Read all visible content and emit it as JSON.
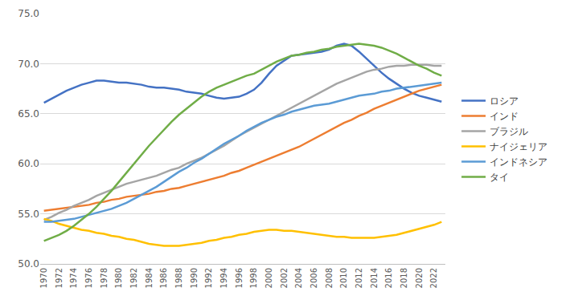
{
  "chart_data": {
    "type": "line",
    "x": [
      1970,
      1971,
      1972,
      1973,
      1974,
      1975,
      1976,
      1977,
      1978,
      1979,
      1980,
      1981,
      1982,
      1983,
      1984,
      1985,
      1986,
      1987,
      1988,
      1989,
      1990,
      1991,
      1992,
      1993,
      1994,
      1995,
      1996,
      1997,
      1998,
      1999,
      2000,
      2001,
      2002,
      2003,
      2004,
      2005,
      2006,
      2007,
      2008,
      2009,
      2010,
      2011,
      2012,
      2013,
      2014,
      2015,
      2016,
      2017,
      2018,
      2019,
      2020,
      2021,
      2022,
      2023
    ],
    "series": [
      {
        "name": "ロシア",
        "color": "#4472c4",
        "values": [
          66.1,
          66.5,
          66.9,
          67.3,
          67.6,
          67.9,
          68.1,
          68.3,
          68.3,
          68.2,
          68.1,
          68.1,
          68.0,
          67.9,
          67.7,
          67.6,
          67.6,
          67.5,
          67.4,
          67.2,
          67.1,
          67.0,
          66.8,
          66.6,
          66.5,
          66.6,
          66.7,
          67.0,
          67.4,
          68.1,
          69.0,
          69.8,
          70.3,
          70.8,
          70.9,
          71.0,
          71.1,
          71.2,
          71.4,
          71.8,
          72.0,
          71.8,
          71.2,
          70.5,
          69.8,
          69.1,
          68.5,
          68.0,
          67.5,
          67.1,
          66.8,
          66.6,
          66.4,
          66.2
        ]
      },
      {
        "name": "インド",
        "color": "#ed7d31",
        "values": [
          55.3,
          55.4,
          55.5,
          55.6,
          55.7,
          55.8,
          55.9,
          56.1,
          56.2,
          56.4,
          56.5,
          56.7,
          56.8,
          56.9,
          57.0,
          57.2,
          57.3,
          57.5,
          57.6,
          57.8,
          58.0,
          58.2,
          58.4,
          58.6,
          58.8,
          59.1,
          59.3,
          59.6,
          59.9,
          60.2,
          60.5,
          60.8,
          61.1,
          61.4,
          61.7,
          62.1,
          62.5,
          62.9,
          63.3,
          63.7,
          64.1,
          64.4,
          64.8,
          65.1,
          65.5,
          65.8,
          66.1,
          66.4,
          66.7,
          67.0,
          67.3,
          67.5,
          67.7,
          67.9
        ]
      },
      {
        "name": "ブラジル",
        "color": "#a5a5a5",
        "values": [
          54.4,
          54.7,
          55.1,
          55.4,
          55.8,
          56.1,
          56.4,
          56.8,
          57.1,
          57.4,
          57.7,
          58.0,
          58.2,
          58.4,
          58.6,
          58.8,
          59.1,
          59.4,
          59.6,
          60.0,
          60.3,
          60.6,
          61.0,
          61.4,
          61.8,
          62.3,
          62.8,
          63.2,
          63.6,
          64.0,
          64.4,
          64.8,
          65.2,
          65.6,
          66.0,
          66.4,
          66.8,
          67.2,
          67.6,
          68.0,
          68.3,
          68.6,
          68.9,
          69.2,
          69.4,
          69.5,
          69.7,
          69.8,
          69.8,
          69.9,
          69.9,
          69.9,
          69.8,
          69.8
        ]
      },
      {
        "name": "ナイジェリア",
        "color": "#ffc000",
        "values": [
          54.5,
          54.3,
          54.0,
          53.8,
          53.6,
          53.4,
          53.3,
          53.1,
          53.0,
          52.8,
          52.7,
          52.5,
          52.4,
          52.2,
          52.0,
          51.9,
          51.8,
          51.8,
          51.8,
          51.9,
          52.0,
          52.1,
          52.3,
          52.4,
          52.6,
          52.7,
          52.9,
          53.0,
          53.2,
          53.3,
          53.4,
          53.4,
          53.3,
          53.3,
          53.2,
          53.1,
          53.0,
          52.9,
          52.8,
          52.7,
          52.7,
          52.6,
          52.6,
          52.6,
          52.6,
          52.7,
          52.8,
          52.9,
          53.1,
          53.3,
          53.5,
          53.7,
          53.9,
          54.2
        ]
      },
      {
        "name": "インドネシア",
        "color": "#5b9bd5",
        "values": [
          54.2,
          54.2,
          54.3,
          54.4,
          54.5,
          54.7,
          54.9,
          55.1,
          55.3,
          55.5,
          55.8,
          56.1,
          56.5,
          56.9,
          57.3,
          57.7,
          58.2,
          58.7,
          59.2,
          59.6,
          60.1,
          60.5,
          61.0,
          61.5,
          62.0,
          62.4,
          62.8,
          63.3,
          63.7,
          64.1,
          64.4,
          64.7,
          64.9,
          65.2,
          65.4,
          65.6,
          65.8,
          65.9,
          66.0,
          66.2,
          66.4,
          66.6,
          66.8,
          66.9,
          67.0,
          67.2,
          67.3,
          67.5,
          67.6,
          67.7,
          67.8,
          67.9,
          68.0,
          68.1
        ]
      },
      {
        "name": "タイ",
        "color": "#70ad47",
        "values": [
          52.3,
          52.6,
          52.9,
          53.3,
          53.8,
          54.4,
          55.0,
          55.7,
          56.5,
          57.3,
          58.2,
          59.1,
          60.0,
          60.9,
          61.8,
          62.6,
          63.4,
          64.2,
          64.9,
          65.5,
          66.1,
          66.7,
          67.2,
          67.6,
          67.9,
          68.2,
          68.5,
          68.8,
          69.0,
          69.4,
          69.8,
          70.2,
          70.5,
          70.8,
          70.9,
          71.1,
          71.2,
          71.4,
          71.5,
          71.7,
          71.8,
          71.9,
          72.0,
          71.9,
          71.8,
          71.6,
          71.3,
          71.0,
          70.6,
          70.2,
          69.8,
          69.5,
          69.1,
          68.8
        ]
      }
    ],
    "xlim": [
      1969.5,
      2023.5
    ],
    "xticks": [
      1970,
      1972,
      1974,
      1976,
      1978,
      1980,
      1982,
      1984,
      1986,
      1988,
      1990,
      1992,
      1994,
      1996,
      1998,
      2000,
      2002,
      2004,
      2006,
      2008,
      2010,
      2012,
      2014,
      2016,
      2018,
      2020,
      2022
    ],
    "ylim": [
      50,
      75
    ],
    "yticks": [
      {
        "value": 50,
        "label": "50.0"
      },
      {
        "value": 55,
        "label": "55.0"
      },
      {
        "value": 60,
        "label": "60.0"
      },
      {
        "value": 65,
        "label": "65.0"
      },
      {
        "value": 70,
        "label": "70.0"
      },
      {
        "value": 75,
        "label": "75.0"
      }
    ],
    "grid": true,
    "legend": "right"
  }
}
